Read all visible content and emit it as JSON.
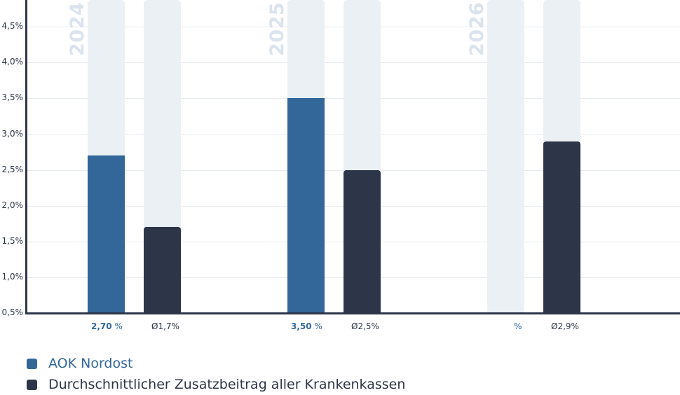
{
  "chart_data": {
    "type": "bar",
    "title": "",
    "xlabel": "",
    "ylabel": "",
    "ylim": [
      0.5,
      4.9
    ],
    "yticks": [
      "0,5%",
      "1,0%",
      "1,5%",
      "2,0%",
      "2,5%",
      "3,0%",
      "3,5%",
      "4,0%",
      "4,5%"
    ],
    "ytick_values": [
      0.5,
      1.0,
      1.5,
      2.0,
      2.5,
      3.0,
      3.5,
      4.0,
      4.5
    ],
    "grid": true,
    "legend_position": "bottom-left",
    "categories": [
      "2024",
      "2025",
      "2026"
    ],
    "series": [
      {
        "name": "AOK Nordost",
        "color": "#336699",
        "values": [
          2.7,
          3.5,
          null
        ],
        "labels": [
          "2,70",
          "3,50",
          ""
        ],
        "unit": "%"
      },
      {
        "name": "Durchschnittlicher Zusatzbeitrag aller Krankenkassen",
        "color": "#2d3648",
        "values": [
          1.7,
          2.5,
          2.9
        ],
        "labels": [
          "Ø1,7%",
          "Ø2,5%",
          "Ø2,9%"
        ]
      }
    ]
  },
  "legend": {
    "items": [
      {
        "label": "AOK Nordost",
        "color": "#336699"
      },
      {
        "label": "Durchschnittlicher Zusatzbeitrag aller Krankenkassen",
        "color": "#2d3648"
      }
    ]
  },
  "colors": {
    "primary": "#336699",
    "secondary": "#2d3648",
    "track": "#ebf0f5",
    "year_watermark": "#dae3ee",
    "grid": "#e6ebf2"
  }
}
